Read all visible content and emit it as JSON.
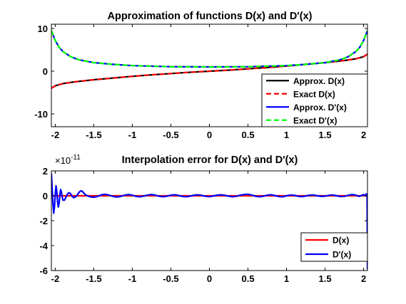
{
  "chart_data": [
    {
      "type": "line",
      "title": "Approximation of functions D(x) and D'(x)",
      "xlim": [
        -2.05,
        2.05
      ],
      "ylim": [
        -13,
        11
      ],
      "xticks": [
        -2,
        -1.5,
        -1,
        -0.5,
        0,
        0.5,
        1,
        1.5,
        2
      ],
      "xtick_labels": [
        "-2",
        "-1.5",
        "-1",
        "-0.5",
        "0",
        "0.5",
        "1",
        "1.5",
        "2"
      ],
      "yticks": [
        -10,
        0,
        10
      ],
      "ytick_labels": [
        "-10",
        "0",
        "10"
      ],
      "legend_position": "bottom-right",
      "grid": false,
      "series": [
        {
          "name": "Approx. D(x)",
          "color": "#000000",
          "style": "solid",
          "x": [
            -2.05,
            -2.0,
            -1.9,
            -1.75,
            -1.5,
            -1.25,
            -1.0,
            -0.75,
            -0.5,
            -0.25,
            0.0,
            0.25,
            0.5,
            0.75,
            1.0,
            1.25,
            1.5,
            1.75,
            1.9,
            2.0,
            2.05
          ],
          "y": [
            -4.0,
            -3.4,
            -2.9,
            -2.5,
            -2.0,
            -1.6,
            -1.2,
            -0.85,
            -0.55,
            -0.25,
            0.0,
            0.25,
            0.55,
            0.85,
            1.2,
            1.6,
            2.0,
            2.5,
            2.9,
            3.4,
            4.0
          ]
        },
        {
          "name": "Exact D(x)",
          "color": "#ff0000",
          "style": "dashed",
          "x": [
            -2.05,
            -2.0,
            -1.9,
            -1.75,
            -1.5,
            -1.25,
            -1.0,
            -0.75,
            -0.5,
            -0.25,
            0.0,
            0.25,
            0.5,
            0.75,
            1.0,
            1.25,
            1.5,
            1.75,
            1.9,
            2.0,
            2.05
          ],
          "y": [
            -4.0,
            -3.4,
            -2.9,
            -2.5,
            -2.0,
            -1.6,
            -1.2,
            -0.85,
            -0.55,
            -0.25,
            0.0,
            0.25,
            0.55,
            0.85,
            1.2,
            1.6,
            2.0,
            2.5,
            2.9,
            3.4,
            4.0
          ]
        },
        {
          "name": "Approx. D'(x)",
          "color": "#0000ff",
          "style": "solid",
          "x": [
            -2.05,
            -2.0,
            -1.95,
            -1.9,
            -1.8,
            -1.7,
            -1.5,
            -1.25,
            -1.0,
            -0.5,
            0.0,
            0.5,
            1.0,
            1.25,
            1.5,
            1.7,
            1.8,
            1.9,
            1.95,
            2.0,
            2.05
          ],
          "y": [
            9.5,
            7.2,
            5.6,
            4.6,
            3.4,
            2.7,
            2.0,
            1.6,
            1.3,
            1.05,
            1.0,
            1.05,
            1.3,
            1.6,
            2.0,
            2.7,
            3.4,
            4.6,
            5.6,
            7.2,
            9.5
          ]
        },
        {
          "name": "Exact D'(x)",
          "color": "#00ff00",
          "style": "dashed",
          "x": [
            -2.05,
            -2.0,
            -1.95,
            -1.9,
            -1.8,
            -1.7,
            -1.5,
            -1.25,
            -1.0,
            -0.5,
            0.0,
            0.5,
            1.0,
            1.25,
            1.5,
            1.7,
            1.8,
            1.9,
            1.95,
            2.0,
            2.05
          ],
          "y": [
            9.5,
            7.2,
            5.6,
            4.6,
            3.4,
            2.7,
            2.0,
            1.6,
            1.3,
            1.05,
            1.0,
            1.05,
            1.3,
            1.6,
            2.0,
            2.7,
            3.4,
            4.6,
            5.6,
            7.2,
            9.5
          ]
        }
      ]
    },
    {
      "type": "line",
      "title": "Interpolation error for D(x) and D'(x)",
      "exponent_label": "×10",
      "exponent_power": "-11",
      "xlim": [
        -2.05,
        2.05
      ],
      "ylim": [
        -6,
        2
      ],
      "xticks": [
        -2,
        -1.5,
        -1,
        -0.5,
        0,
        0.5,
        1,
        1.5,
        2
      ],
      "xtick_labels": [
        "-2",
        "-1.5",
        "-1",
        "-0.5",
        "0",
        "0.5",
        "1",
        "1.5",
        "2"
      ],
      "yticks": [
        -6,
        -4,
        -2,
        0,
        2
      ],
      "ytick_labels": [
        "-6",
        "-4",
        "-2",
        "0",
        "2"
      ],
      "legend_position": "bottom-right",
      "grid": false,
      "series": [
        {
          "name": "D(x)",
          "color": "#ff0000",
          "style": "solid",
          "x": [
            -2.05,
            -1.5,
            -1.0,
            -0.5,
            0.0,
            0.5,
            1.0,
            1.5,
            2.05
          ],
          "y": [
            0,
            0,
            0,
            0,
            0,
            0,
            0,
            0,
            0
          ]
        },
        {
          "name": "D'(x)",
          "color": "#0000ff",
          "style": "solid",
          "x": [
            -2.05,
            -2.04,
            -2.03,
            -2.02,
            -2.01,
            -2.0,
            -1.99,
            -1.98,
            -1.97,
            -1.96,
            -1.95,
            -1.94,
            -1.93,
            -1.92,
            -1.91,
            -1.9,
            -1.88,
            -1.86,
            -1.84,
            -1.82,
            -1.8,
            -1.78,
            -1.76,
            -1.74,
            -1.72,
            -1.7,
            -1.68,
            -1.66,
            -1.64,
            -1.62,
            -1.6,
            -1.55,
            -1.5,
            -1.45,
            -1.4,
            -1.35,
            -1.3,
            -1.25,
            -1.2,
            -1.15,
            -1.1,
            -1.05,
            -1.0,
            -0.95,
            -0.9,
            -0.85,
            -0.8,
            -0.75,
            -0.7,
            -0.65,
            -0.6,
            -0.55,
            -0.5,
            -0.45,
            -0.4,
            -0.35,
            -0.3,
            -0.25,
            -0.2,
            -0.15,
            -0.1,
            -0.05,
            0.0,
            0.05,
            0.1,
            0.15,
            0.2,
            0.25,
            0.3,
            0.35,
            0.4,
            0.45,
            0.5,
            0.55,
            0.6,
            0.65,
            0.7,
            0.75,
            0.8,
            0.85,
            0.9,
            0.95,
            1.0,
            1.05,
            1.1,
            1.15,
            1.2,
            1.25,
            1.3,
            1.35,
            1.4,
            1.45,
            1.5,
            1.55,
            1.6,
            1.65,
            1.7,
            1.75,
            1.8,
            1.85,
            1.9,
            1.94,
            1.97,
            2.0,
            2.02,
            2.035,
            2.045,
            2.05
          ],
          "y": [
            1.8,
            0.6,
            -0.6,
            -1.4,
            -0.9,
            0.1,
            0.8,
            0.4,
            -0.5,
            -0.9,
            -0.6,
            0.1,
            0.5,
            0.3,
            -0.1,
            -0.35,
            -0.35,
            -0.1,
            0.15,
            0.25,
            0.15,
            -0.05,
            -0.15,
            -0.1,
            0.0,
            0.2,
            0.35,
            0.4,
            0.3,
            0.15,
            0.05,
            -0.08,
            -0.12,
            -0.05,
            0.08,
            0.12,
            0.05,
            -0.05,
            -0.1,
            -0.05,
            0.05,
            0.1,
            0.05,
            -0.05,
            -0.08,
            -0.02,
            0.06,
            0.1,
            0.05,
            -0.04,
            -0.08,
            -0.03,
            0.05,
            0.08,
            0.03,
            -0.05,
            -0.08,
            -0.03,
            0.05,
            0.08,
            0.03,
            -0.04,
            -0.07,
            -0.02,
            0.05,
            0.08,
            0.04,
            -0.03,
            -0.08,
            -0.04,
            0.05,
            0.1,
            0.12,
            0.06,
            -0.04,
            -0.08,
            -0.03,
            0.05,
            0.08,
            0.02,
            -0.06,
            -0.08,
            0.0,
            0.06,
            0.04,
            -0.04,
            -0.07,
            -0.02,
            0.05,
            0.06,
            0.0,
            -0.05,
            -0.03,
            0.04,
            0.06,
            0.0,
            -0.06,
            -0.05,
            0.04,
            0.1,
            0.05,
            -0.05,
            0.02,
            0.1,
            0.0,
            0.15,
            0.1,
            -5.9
          ]
        }
      ]
    }
  ]
}
